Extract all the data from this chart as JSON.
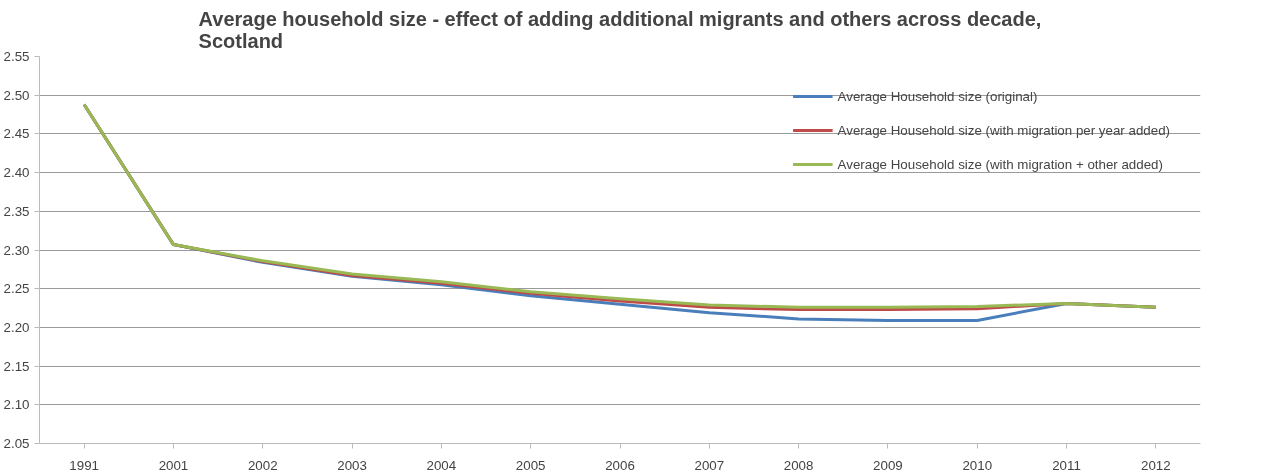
{
  "chart_data": {
    "type": "line",
    "title": "Average household size - effect of adding additional migrants and others across decade,\nScotland",
    "categories": [
      "1991",
      "2001",
      "2002",
      "2003",
      "2004",
      "2005",
      "2006",
      "2007",
      "2008",
      "2009",
      "2010",
      "2011",
      "2012"
    ],
    "series": [
      {
        "name": "Average Household size (original)",
        "color": "#4a7ebb",
        "values": [
          2.488,
          2.307,
          2.284,
          2.266,
          2.255,
          2.241,
          2.23,
          2.219,
          2.211,
          2.209,
          2.209,
          2.231,
          2.226
        ]
      },
      {
        "name": "Average Household size (with migration per year added)",
        "color": "#be4b48",
        "values": [
          2.488,
          2.307,
          2.285,
          2.267,
          2.257,
          2.244,
          2.234,
          2.226,
          2.223,
          2.223,
          2.224,
          2.231,
          2.226
        ]
      },
      {
        "name": "Average Household size (with migration + other added)",
        "color": "#98b954",
        "values": [
          2.488,
          2.307,
          2.286,
          2.269,
          2.259,
          2.246,
          2.237,
          2.229,
          2.226,
          2.226,
          2.227,
          2.231,
          2.226
        ]
      }
    ],
    "ylim": [
      2.05,
      2.55
    ],
    "yticks": [
      {
        "value": 2.05,
        "label": "2.05"
      },
      {
        "value": 2.1,
        "label": "2.10"
      },
      {
        "value": 2.15,
        "label": "2.15"
      },
      {
        "value": 2.2,
        "label": "2.20"
      },
      {
        "value": 2.25,
        "label": "2.25"
      },
      {
        "value": 2.3,
        "label": "2.30"
      },
      {
        "value": 2.35,
        "label": "2.35"
      },
      {
        "value": 2.4,
        "label": "2.40"
      },
      {
        "value": 2.45,
        "label": "2.45"
      },
      {
        "value": 2.5,
        "label": "2.50"
      },
      {
        "value": 2.55,
        "label": "2.55"
      }
    ],
    "grid": "y",
    "legend": "top right",
    "marker": "none",
    "line_style": "solid"
  }
}
